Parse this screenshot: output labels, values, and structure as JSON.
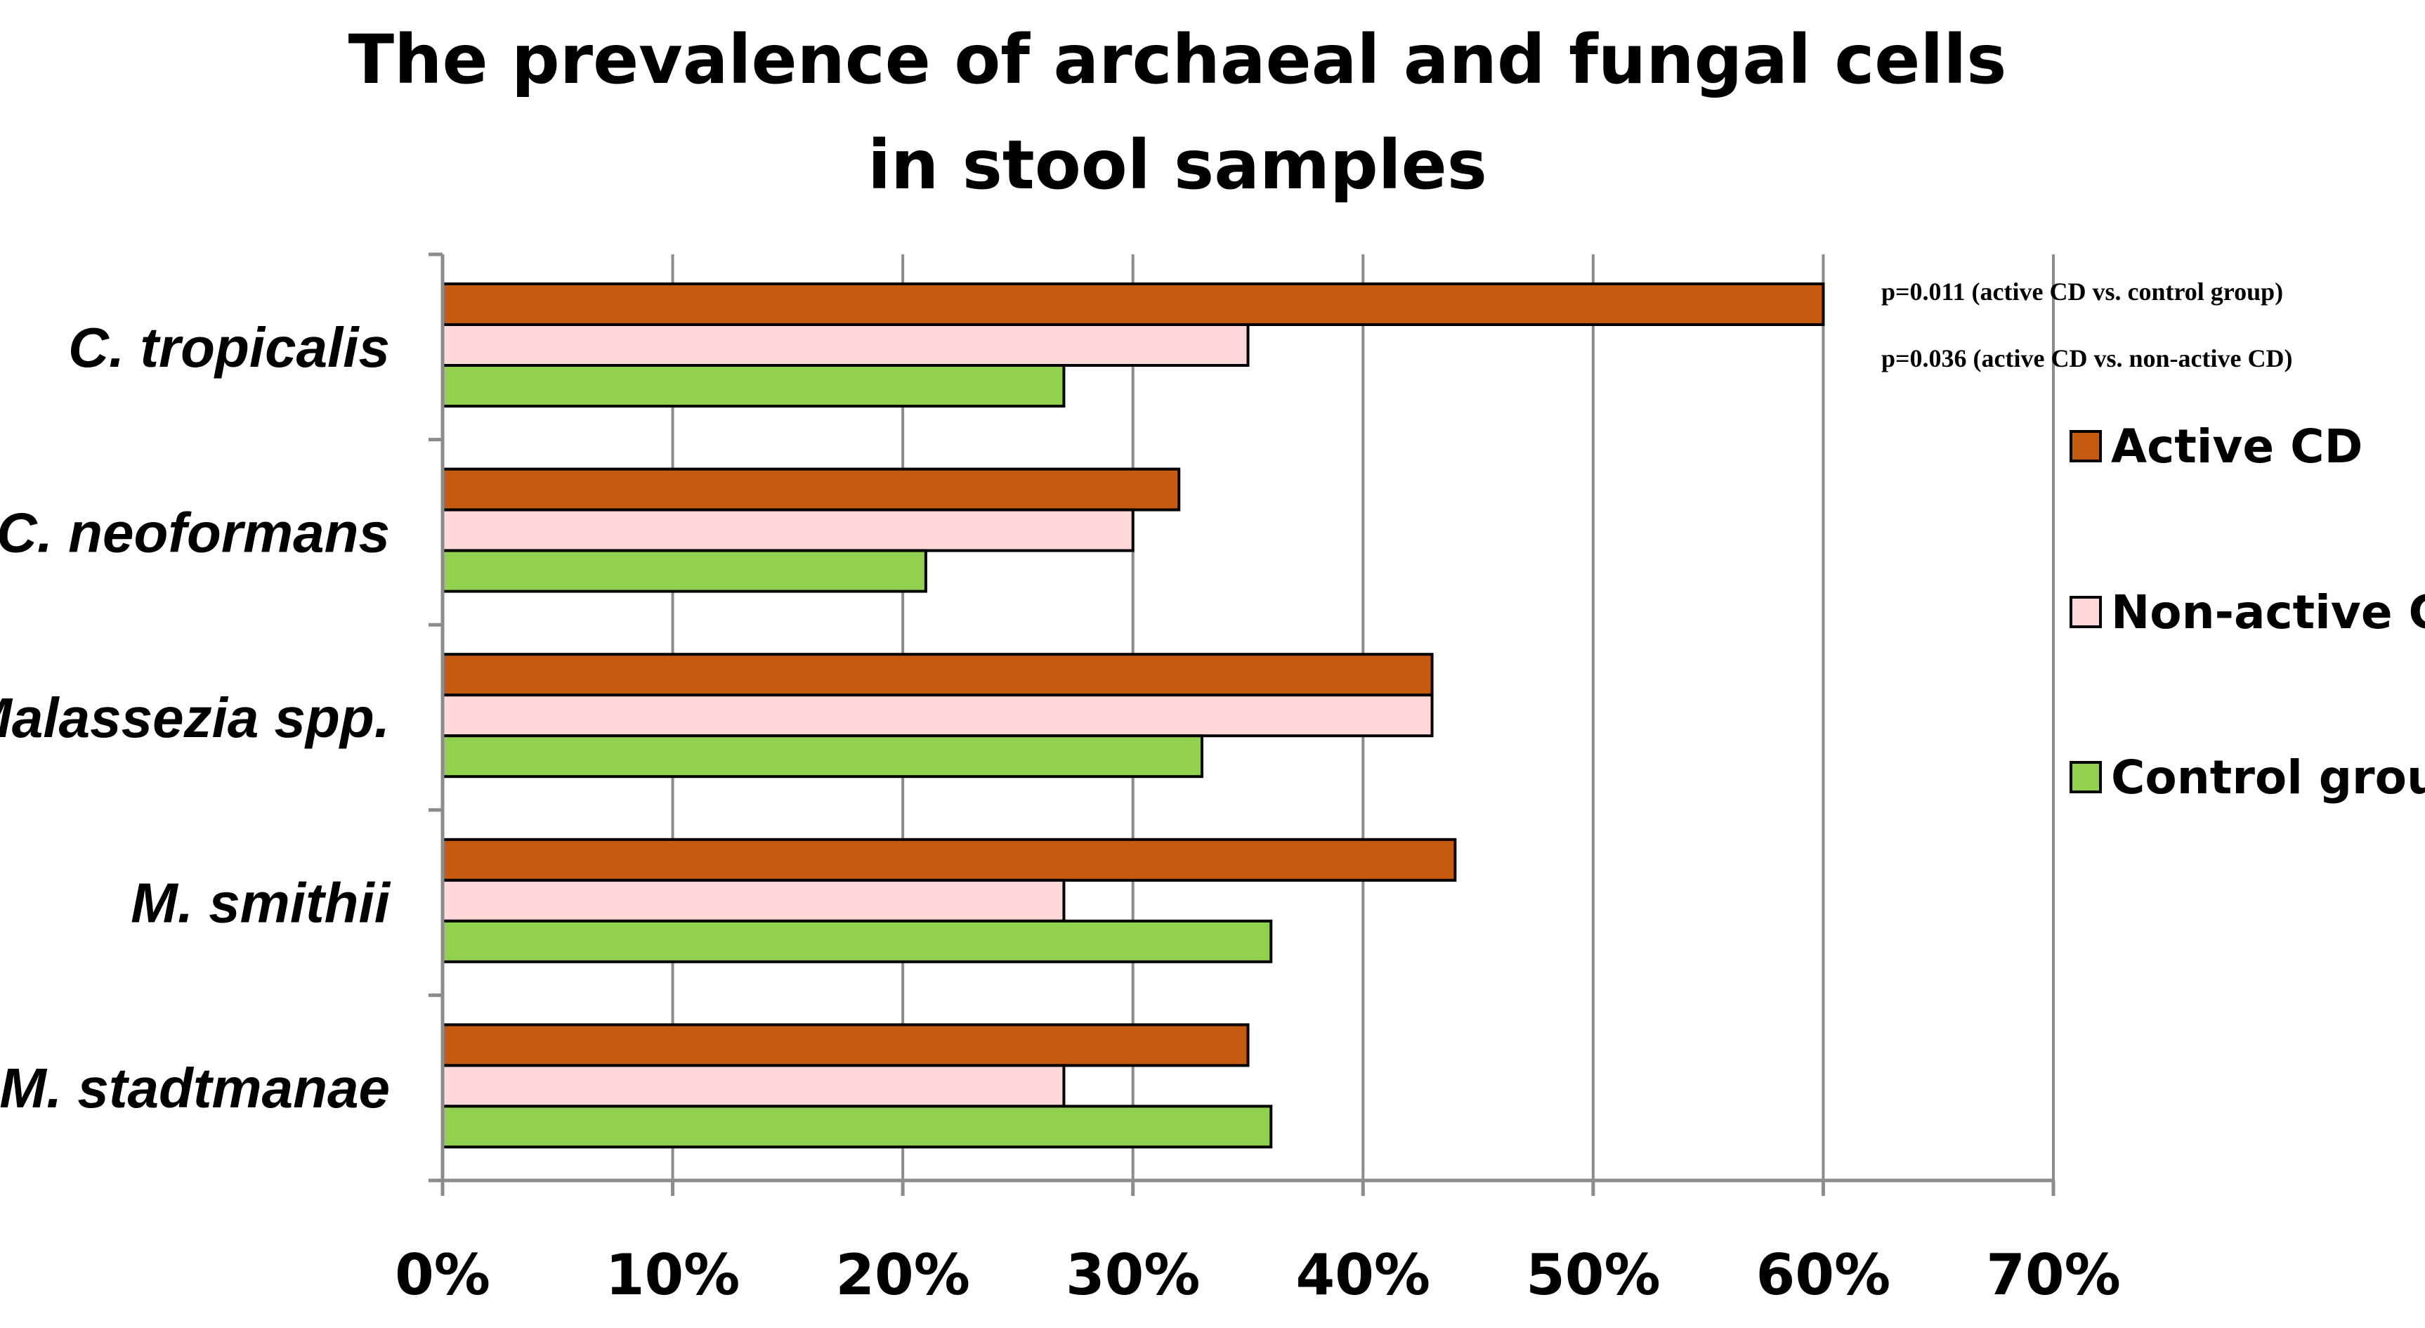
{
  "chart_data": {
    "type": "bar",
    "orientation": "horizontal",
    "title": "The prevalence of archaeal and fungal cells in stool samples",
    "title_lines": [
      "The prevalence of archaeal and fungal cells",
      "in stool samples"
    ],
    "categories": [
      "C. tropicalis",
      "C. neoformans",
      "Malassezia spp.",
      "M. smithii",
      "M. stadtmanae"
    ],
    "series": [
      {
        "name": "Active CD",
        "color": "#C55A11",
        "values": [
          60,
          32,
          43,
          44,
          35
        ]
      },
      {
        "name": "Non-active CD",
        "color": "#FFD9D9",
        "values": [
          35,
          30,
          43,
          27,
          27
        ]
      },
      {
        "name": "Control group",
        "color": "#92D050",
        "values": [
          27,
          21,
          33,
          36,
          36
        ]
      }
    ],
    "xlim": [
      0,
      70
    ],
    "xticks": [
      0,
      10,
      20,
      30,
      40,
      50,
      60,
      70
    ],
    "xtick_labels": [
      "0%",
      "10%",
      "20%",
      "30%",
      "40%",
      "50%",
      "60%",
      "70%"
    ],
    "xlabel": "",
    "ylabel": "",
    "grid": true,
    "legend_position": "right",
    "annotations": [
      "p=0.011 (active CD vs. control group)",
      "p=0.036 (active CD vs. non-active CD)"
    ]
  }
}
